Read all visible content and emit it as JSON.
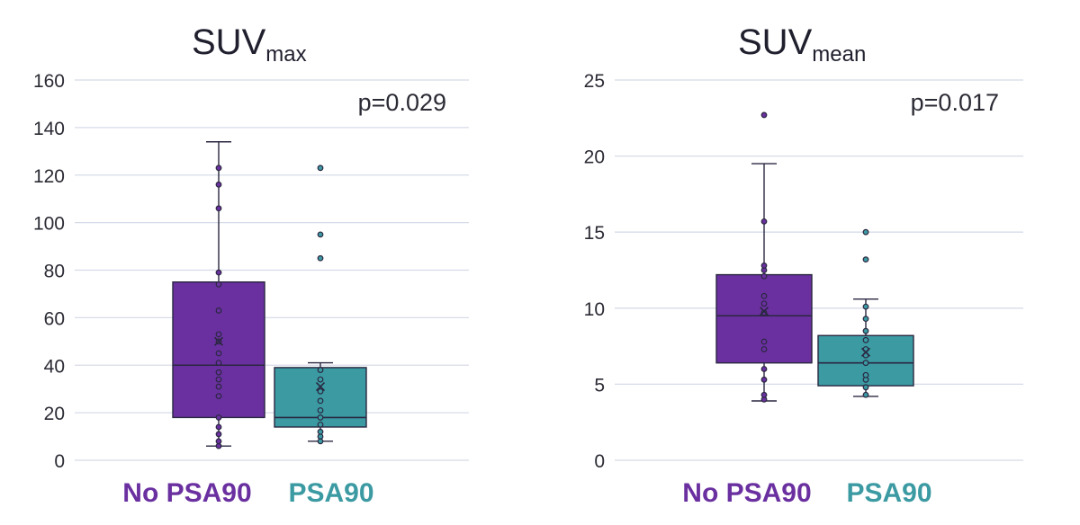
{
  "colors": {
    "group1": "#6a30a0",
    "group2": "#3b9aa2",
    "grid": "#d7dbe8",
    "outline": "#2a2740"
  },
  "chart_data": [
    {
      "type": "box",
      "title": "SUV",
      "title_subscript": "max",
      "annotation": "p=0.029",
      "ylim": [
        0,
        160
      ],
      "yticks": [
        0,
        20,
        40,
        60,
        80,
        100,
        120,
        140,
        160
      ],
      "grid": true,
      "categories": [
        "No PSA90",
        "PSA90"
      ],
      "series": [
        {
          "name": "No PSA90",
          "color": "#6a30a0",
          "min": 6,
          "q1": 18,
          "median": 40,
          "q3": 75,
          "max": 134,
          "mean": 50,
          "points": [
            6,
            8,
            11,
            14,
            18,
            27,
            31,
            34,
            37,
            41,
            45,
            50,
            53,
            63,
            74,
            79,
            106,
            116,
            123
          ]
        },
        {
          "name": "PSA90",
          "color": "#3b9aa2",
          "min": 8,
          "q1": 14,
          "median": 18,
          "q3": 39,
          "max": 41,
          "mean": 31,
          "points": [
            8,
            10,
            12,
            15,
            18,
            21,
            25,
            29,
            34,
            38,
            85,
            95,
            123
          ]
        }
      ]
    },
    {
      "type": "box",
      "title": "SUV",
      "title_subscript": "mean",
      "annotation": "p=0.017",
      "ylim": [
        0,
        25
      ],
      "yticks": [
        0,
        5,
        10,
        15,
        20,
        25
      ],
      "grid": true,
      "categories": [
        "No PSA90",
        "PSA90"
      ],
      "series": [
        {
          "name": "No PSA90",
          "color": "#6a30a0",
          "min": 3.9,
          "q1": 6.4,
          "median": 9.5,
          "q3": 12.2,
          "max": 19.5,
          "mean": 9.8,
          "points": [
            4.0,
            4.3,
            5.3,
            6.0,
            7.3,
            7.8,
            9.7,
            10.3,
            10.8,
            12.1,
            12.5,
            12.8,
            15.7,
            22.7
          ]
        },
        {
          "name": "PSA90",
          "color": "#3b9aa2",
          "min": 4.2,
          "q1": 4.9,
          "median": 6.4,
          "q3": 8.2,
          "max": 10.6,
          "mean": 7.1,
          "points": [
            4.3,
            4.8,
            5.3,
            5.6,
            6.4,
            6.9,
            7.3,
            7.9,
            8.5,
            9.3,
            10.1,
            13.2,
            15.0
          ]
        }
      ]
    }
  ]
}
